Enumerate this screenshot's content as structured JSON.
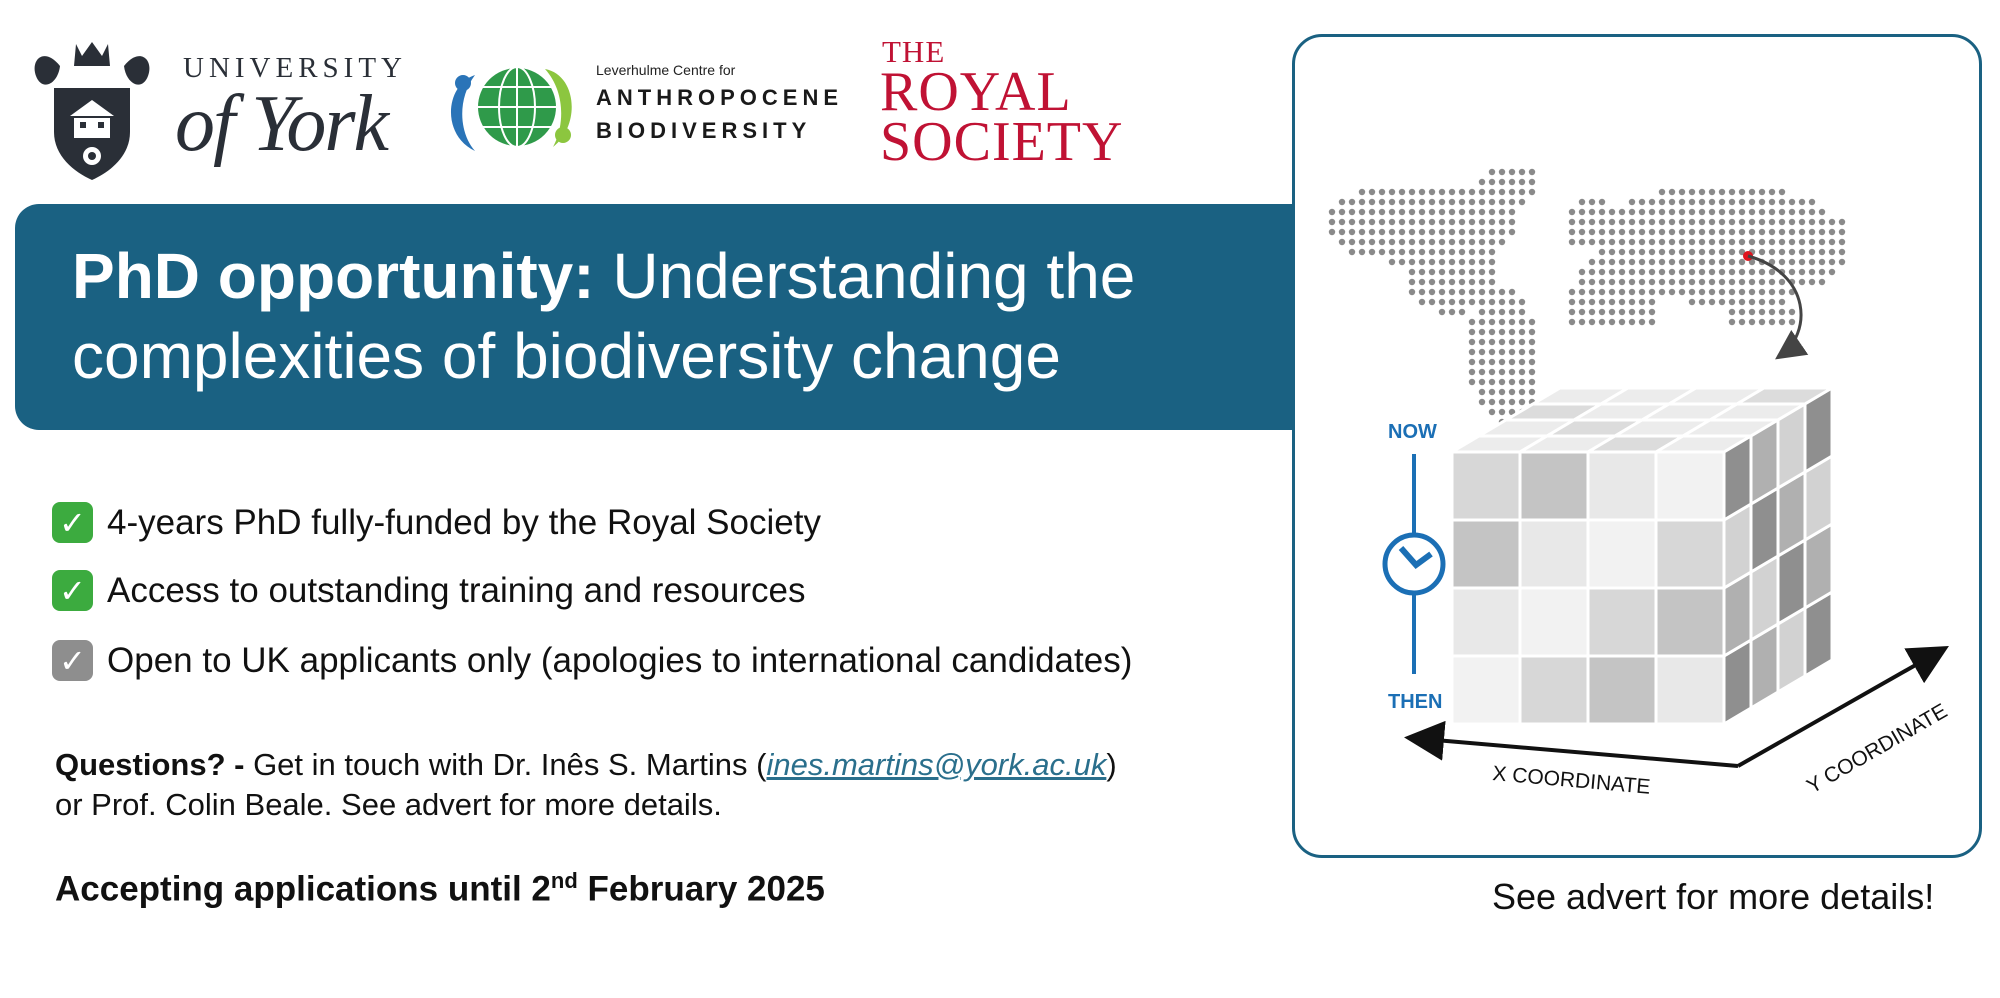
{
  "logos": {
    "york": {
      "line1": "UNIVERSITY",
      "line2": "of York"
    },
    "lcab": {
      "small": "Leverhulme Centre for",
      "line1": "ANTHROPOCENE",
      "line2": "BIODIVERSITY"
    },
    "royal_society": {
      "line1": "THE",
      "line2": "ROYAL",
      "line3": "SOCIETY"
    }
  },
  "banner": {
    "title_bold": "PhD opportunity:",
    "title_rest_1": " Understanding the",
    "title_rest_2": "complexities of biodiversity change"
  },
  "checklist": [
    {
      "text": "4-years PhD fully-funded by the Royal Society",
      "status": "green"
    },
    {
      "text": "Access to outstanding training and resources",
      "status": "green"
    },
    {
      "text": "Open to UK applicants only (apologies to international candidates)",
      "status": "grey"
    }
  ],
  "questions": {
    "label": "Questions? -",
    "text_before": " Get in touch with Dr. Inês S. Martins (",
    "email": "ines.martins@york.ac.uk",
    "text_after": ")",
    "line2": "or Prof. Colin Beale. See advert for more details."
  },
  "deadline": {
    "prefix": "Accepting applications until 2",
    "sup": "nd",
    "suffix": " February 2025"
  },
  "figure": {
    "now_label": "NOW",
    "then_label": "THEN",
    "x_axis": "X COORDINATE",
    "y_axis": "Y COORDINATE"
  },
  "see_more": "See advert for more details!",
  "colors": {
    "banner": "#1a6182",
    "check_green": "#3cab3f",
    "check_grey": "#8e8e8e",
    "royal_red": "#c01234",
    "time_blue": "#1b6fb5"
  }
}
